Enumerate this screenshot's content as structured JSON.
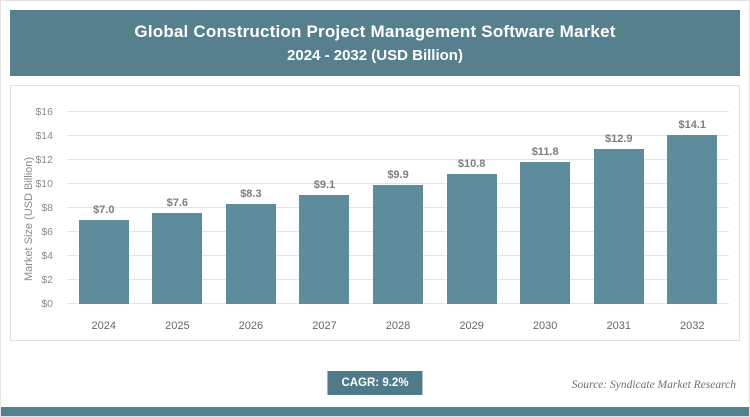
{
  "header": {
    "title_line1": "Global Construction Project Management Software Market",
    "title_line2": "2024 - 2032 (USD Billion)"
  },
  "chart_data": {
    "type": "bar",
    "title": "Global Construction Project Management Software Market 2024 - 2032 (USD Billion)",
    "categories": [
      "2024",
      "2025",
      "2026",
      "2027",
      "2028",
      "2029",
      "2030",
      "2031",
      "2032"
    ],
    "values": [
      7.0,
      7.6,
      8.3,
      9.1,
      9.9,
      10.8,
      11.8,
      12.9,
      14.1
    ],
    "value_labels": [
      "$7.0",
      "$7.6",
      "$8.3",
      "$9.1",
      "$9.9",
      "$10.8",
      "$11.8",
      "$12.9",
      "$14.1"
    ],
    "xlabel": "",
    "ylabel": "Market Size (USD Billion)",
    "ylim": [
      0,
      16
    ],
    "ytick_step": 2,
    "ytick_labels": [
      "$0",
      "$2",
      "$4",
      "$6",
      "$8",
      "$10",
      "$12",
      "$14",
      "$16"
    ],
    "grid": true,
    "legend": false,
    "bar_color": "#5E8C9C"
  },
  "footer": {
    "cagr_label": "CAGR: 9.2%",
    "source": "Source: Syndicate Market Research"
  },
  "colors": {
    "banner": "#57808F",
    "badge": "#4E7A8A",
    "strip": "#57808F",
    "bar": "#5E8C9C"
  }
}
